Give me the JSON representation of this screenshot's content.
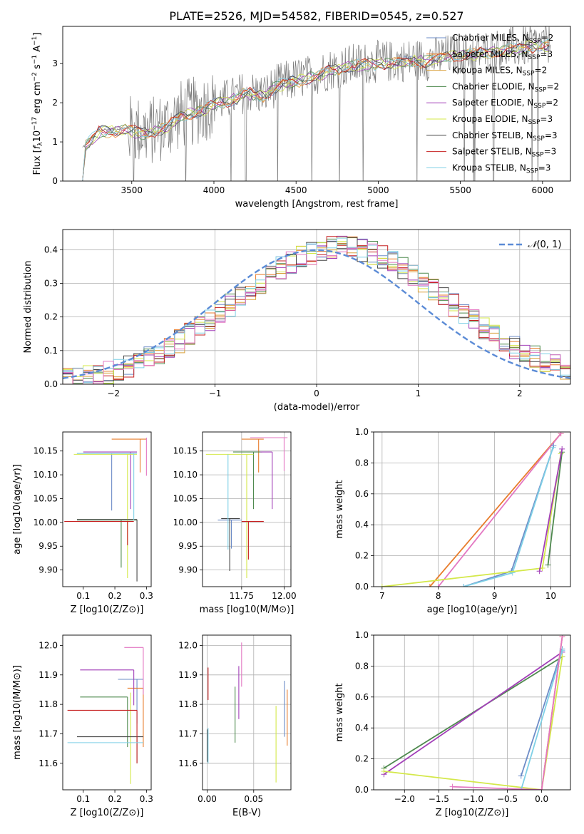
{
  "figure_title": "PLATE=2526, MJD=54582, FIBERID=0545, z=0.527",
  "legend_models": [
    {
      "label": "Chabrier MILES, N$_{SSP}$=2",
      "color": "#6d8cc7"
    },
    {
      "label": "Salpeter MILES, N$_{SSP}$=3",
      "color": "#e87c2b"
    },
    {
      "label": "Kroupa MILES, N$_{SSP}$=2",
      "color": "#d9a03a"
    },
    {
      "label": "Chabrier ELODIE, N$_{SSP}$=2",
      "color": "#4f8a4f"
    },
    {
      "label": "Salpeter ELODIE, N$_{SSP}$=2",
      "color": "#a23fb8"
    },
    {
      "label": "Kroupa ELODIE, N$_{SSP}$=3",
      "color": "#d4e84a"
    },
    {
      "label": "Chabrier STELIB, N$_{SSP}$=3",
      "color": "#444444"
    },
    {
      "label": "Salpeter STELIB, N$_{SSP}$=3",
      "color": "#c62020"
    },
    {
      "label": "Kroupa STELIB, N$_{SSP}$=3",
      "color": "#7fd0e6"
    }
  ],
  "legend_display": [
    "Chabrier MILES, N_SSP=2",
    "Salpeter MILES, N_SSP=3",
    "Kroupa MILES, N_SSP=2",
    "Chabrier ELODIE, N_SSP=2",
    "Salpeter ELODIE, N_SSP=2",
    "Kroupa ELODIE, N_SSP=3",
    "Chabrier STELIB, N_SSP=3",
    "Salpeter STELIB, N_SSP=3",
    "Kroupa STELIB, N_SSP=3"
  ],
  "colors": {
    "data": "#7a7a7a",
    "pink": "#e377c2",
    "gaussian": "#5b8bd6",
    "grid": "#b0b0b0"
  },
  "chart_data": [
    {
      "id": "spectrum",
      "type": "line",
      "title": "PLATE=2526, MJD=54582, FIBERID=0545, z=0.527",
      "xlabel": "wavelength [Angstrom, rest frame]",
      "ylabel": "Flux [f_λ 10^-17 erg cm^-2 s^-1 A^-1]",
      "xlim": [
        3080,
        6170
      ],
      "ylim": [
        0,
        3.95
      ],
      "xticks": [
        3500,
        4000,
        4500,
        5000,
        5500,
        6000
      ],
      "yticks": [
        0,
        1,
        2,
        3
      ],
      "continuum_x": [
        3200,
        3300,
        3450,
        3600,
        3700,
        3800,
        3900,
        4000,
        4100,
        4200,
        4300,
        4400,
        4500,
        4600,
        4700,
        4800,
        4900,
        5000,
        5100,
        5200,
        5300,
        5400,
        5500,
        5600,
        5700,
        5800,
        5900,
        6000,
        6050
      ],
      "continuum_y": [
        0.85,
        1.3,
        1.35,
        1.25,
        1.4,
        1.7,
        1.8,
        2.0,
        2.1,
        2.3,
        2.2,
        2.5,
        2.6,
        2.7,
        2.85,
        2.95,
        3.0,
        3.05,
        3.05,
        3.1,
        3.1,
        3.2,
        3.25,
        3.3,
        3.35,
        3.4,
        3.45,
        3.5,
        3.5
      ],
      "grid": false,
      "legend": "top-right"
    },
    {
      "id": "residuals",
      "type": "histogram",
      "xlabel": "(data-model)/error",
      "ylabel": "Normed distribution",
      "xlim": [
        -2.5,
        2.5
      ],
      "ylim": [
        0,
        0.46
      ],
      "xticks": [
        -2,
        -1,
        0,
        1,
        2
      ],
      "yticks": [
        0.0,
        0.1,
        0.2,
        0.3,
        0.4
      ],
      "bin_width": 0.1,
      "gaussian_label": "N(0,1)",
      "legend": "upper-right",
      "grid": true
    },
    {
      "id": "age_vs_Z",
      "type": "errorbar",
      "xlabel": "Z [log10(Z/Z⊙)]",
      "ylabel": "age  [log10(age/yr)]",
      "xlim": [
        0.035,
        0.315
      ],
      "ylim": [
        9.865,
        10.19
      ],
      "xticks": [
        0.1,
        0.2,
        0.3
      ],
      "yticks": [
        9.9,
        9.95,
        10.0,
        10.05,
        10.1,
        10.15
      ],
      "grid": false,
      "points": [
        {
          "x": 0.19,
          "y": 10.145,
          "xerr": [
            0.11,
            0.07
          ],
          "yerr": [
            0.12,
            0.0
          ],
          "color": "#6d8cc7"
        },
        {
          "x": 0.28,
          "y": 10.175,
          "xerr": [
            0.09,
            0.02
          ],
          "yerr": [
            0.07,
            0.0
          ],
          "color": "#e87c2b"
        },
        {
          "x": 0.22,
          "y": 10.005,
          "xerr": [
            0.14,
            0.05
          ],
          "yerr": [
            0.1,
            0.0
          ],
          "color": "#4f8a4f"
        },
        {
          "x": 0.25,
          "y": 10.148,
          "xerr": [
            0.15,
            0.02
          ],
          "yerr": [
            0.12,
            0.0
          ],
          "color": "#a23fb8"
        },
        {
          "x": 0.24,
          "y": 10.143,
          "xerr": [
            0.17,
            0.03
          ],
          "yerr": [
            0.26,
            0.0
          ],
          "color": "#d4e84a"
        },
        {
          "x": 0.27,
          "y": 10.006,
          "xerr": [
            0.19,
            0.0
          ],
          "yerr": [
            0.13,
            0.0
          ],
          "color": "#444444"
        },
        {
          "x": 0.24,
          "y": 10.002,
          "xerr": [
            0.2,
            0.02
          ],
          "yerr": [
            0.05,
            0.0
          ],
          "color": "#c62020"
        },
        {
          "x": 0.26,
          "y": 10.145,
          "xerr": [
            0.18,
            0.01
          ],
          "yerr": [
            0.14,
            0.0
          ],
          "color": "#7fd0e6"
        },
        {
          "x": 0.3,
          "y": 10.178,
          "xerr": [
            0.0,
            0.0
          ],
          "yerr": [
            0.08,
            0.0
          ],
          "color": "#e377c2"
        }
      ]
    },
    {
      "id": "age_vs_mass",
      "type": "errorbar",
      "xlabel": "mass [log10(M/M⊙)]",
      "ylabel": "",
      "xlim": [
        11.52,
        12.04
      ],
      "ylim": [
        9.865,
        10.19
      ],
      "xticks": [
        11.75,
        12.0
      ],
      "yticks": [
        9.9,
        9.95,
        10.0,
        10.05,
        10.1,
        10.15
      ],
      "grid": true,
      "points": [
        {
          "x": 11.69,
          "y": 10.005,
          "xerr": [
            0.08,
            0.06
          ],
          "yerr": [
            0.06,
            0.0
          ],
          "color": "#6d8cc7"
        },
        {
          "x": 11.85,
          "y": 10.175,
          "xerr": [
            0.1,
            0.03
          ],
          "yerr": [
            0.07,
            0.0
          ],
          "color": "#e87c2b"
        },
        {
          "x": 11.82,
          "y": 10.148,
          "xerr": [
            0.12,
            0.05
          ],
          "yerr": [
            0.12,
            0.0
          ],
          "color": "#4f8a4f"
        },
        {
          "x": 11.93,
          "y": 10.148,
          "xerr": [
            0.07,
            0.0
          ],
          "yerr": [
            0.12,
            0.0
          ],
          "color": "#a23fb8"
        },
        {
          "x": 11.78,
          "y": 10.143,
          "xerr": [
            0.24,
            0.04
          ],
          "yerr": [
            0.26,
            0.0
          ],
          "color": "#d4e84a"
        },
        {
          "x": 11.68,
          "y": 10.008,
          "xerr": [
            0.05,
            0.06
          ],
          "yerr": [
            0.11,
            0.0
          ],
          "color": "#444444"
        },
        {
          "x": 11.79,
          "y": 10.002,
          "xerr": [
            0.04,
            0.09
          ],
          "yerr": [
            0.08,
            0.0
          ],
          "color": "#c62020"
        },
        {
          "x": 11.67,
          "y": 10.143,
          "xerr": [
            0.0,
            0.0
          ],
          "yerr": [
            0.2,
            0.0
          ],
          "color": "#7fd0e6"
        },
        {
          "x": 12.0,
          "y": 10.178,
          "xerr": [
            0.2,
            0.02
          ],
          "yerr": [
            0.07,
            0.0
          ],
          "color": "#e377c2"
        }
      ]
    },
    {
      "id": "mass_weight_vs_age",
      "type": "line",
      "xlabel": "age  [log10(age/yr)]",
      "ylabel": "mass weight",
      "xlim": [
        6.85,
        10.35
      ],
      "ylim": [
        0,
        1.0
      ],
      "xticks": [
        7,
        8,
        9,
        10
      ],
      "yticks": [
        0.0,
        0.2,
        0.4,
        0.6,
        0.8,
        1.0
      ],
      "grid": true,
      "series": [
        {
          "color": "#e87c2b",
          "x": [
            7.85,
            10.18
          ],
          "y": [
            0.0,
            0.99
          ]
        },
        {
          "color": "#e377c2",
          "x": [
            8.0,
            10.18
          ],
          "y": [
            0.0,
            0.99
          ]
        },
        {
          "color": "#6d8cc7",
          "x": [
            8.45,
            9.3,
            10.05
          ],
          "y": [
            0.0,
            0.1,
            0.91
          ]
        },
        {
          "color": "#7fd0e6",
          "x": [
            8.45,
            9.32,
            10.04
          ],
          "y": [
            0.0,
            0.09,
            0.9
          ]
        },
        {
          "color": "#d4e84a",
          "x": [
            7.0,
            9.85,
            10.18
          ],
          "y": [
            0.0,
            0.12,
            0.86
          ]
        },
        {
          "color": "#4f8a4f",
          "x": [
            9.95,
            10.2
          ],
          "y": [
            0.14,
            0.87
          ]
        },
        {
          "color": "#a23fb8",
          "x": [
            9.8,
            10.2
          ],
          "y": [
            0.1,
            0.89
          ]
        }
      ]
    },
    {
      "id": "mass_vs_Z",
      "type": "errorbar",
      "xlabel": "Z [log10(Z/Z⊙)]",
      "ylabel": "mass [log10(M/M⊙)]",
      "xlim": [
        0.035,
        0.315
      ],
      "ylim": [
        11.51,
        12.035
      ],
      "xticks": [
        0.1,
        0.2,
        0.3
      ],
      "yticks": [
        11.6,
        11.7,
        11.8,
        11.9,
        12.0
      ],
      "grid": false,
      "points": [
        {
          "x": 0.27,
          "y": 11.885,
          "xerr": [
            0.06,
            0.02
          ],
          "yerr": [
            0.15,
            0.0
          ],
          "color": "#6d8cc7"
        },
        {
          "x": 0.29,
          "y": 11.855,
          "xerr": [
            0.05,
            0.0
          ],
          "yerr": [
            0.2,
            0.0
          ],
          "color": "#e87c2b"
        },
        {
          "x": 0.24,
          "y": 11.825,
          "xerr": [
            0.15,
            0.0
          ],
          "yerr": [
            0.17,
            0.0
          ],
          "color": "#4f8a4f"
        },
        {
          "x": 0.26,
          "y": 11.917,
          "xerr": [
            0.17,
            0.0
          ],
          "yerr": [
            0.12,
            0.0
          ],
          "color": "#a23fb8"
        },
        {
          "x": 0.25,
          "y": 11.84,
          "xerr": [
            0.0,
            0.0
          ],
          "yerr": [
            0.31,
            0.0
          ],
          "color": "#d4e84a"
        },
        {
          "x": 0.27,
          "y": 11.69,
          "xerr": [
            0.19,
            0.02
          ],
          "yerr": [
            0.09,
            0.0
          ],
          "color": "#444444"
        },
        {
          "x": 0.27,
          "y": 11.78,
          "xerr": [
            0.22,
            0.0
          ],
          "yerr": [
            0.18,
            0.0
          ],
          "color": "#c62020"
        },
        {
          "x": 0.25,
          "y": 11.67,
          "xerr": [
            0.2,
            0.04
          ],
          "yerr": [
            0.0,
            0.0
          ],
          "color": "#7fd0e6"
        },
        {
          "x": 0.29,
          "y": 11.993,
          "xerr": [
            0.06,
            0.0
          ],
          "yerr": [
            0.16,
            0.0
          ],
          "color": "#e377c2"
        }
      ]
    },
    {
      "id": "mass_vs_EBV",
      "type": "errorbar",
      "xlabel": "E(B-V)",
      "ylabel": "",
      "xlim": [
        -0.005,
        0.09
      ],
      "ylim": [
        11.51,
        12.035
      ],
      "xticks": [
        0.0,
        0.05
      ],
      "yticks": [
        11.6,
        11.7,
        11.8,
        11.9,
        12.0
      ],
      "grid": true,
      "points": [
        {
          "x": 0.083,
          "y": 11.69,
          "xerr": [
            0.0,
            0.0
          ],
          "yerr": [
            0.0,
            0.19
          ],
          "color": "#6d8cc7"
        },
        {
          "x": 0.086,
          "y": 11.66,
          "xerr": [
            0.0,
            0.0
          ],
          "yerr": [
            0.0,
            0.19
          ],
          "color": "#e87c2b"
        },
        {
          "x": 0.03,
          "y": 11.67,
          "xerr": [
            0.0,
            0.0
          ],
          "yerr": [
            0.0,
            0.19
          ],
          "color": "#4f8a4f"
        },
        {
          "x": 0.034,
          "y": 11.75,
          "xerr": [
            0.0,
            0.0
          ],
          "yerr": [
            0.0,
            0.18
          ],
          "color": "#a23fb8"
        },
        {
          "x": 0.074,
          "y": 11.535,
          "xerr": [
            0.0,
            0.0
          ],
          "yerr": [
            0.0,
            0.26
          ],
          "color": "#d4e84a"
        },
        {
          "x": 0.0,
          "y": 11.605,
          "xerr": [
            0.0,
            0.0
          ],
          "yerr": [
            0.0,
            0.11
          ],
          "color": "#444444"
        },
        {
          "x": 0.001,
          "y": 11.815,
          "xerr": [
            0.0,
            0.0
          ],
          "yerr": [
            0.0,
            0.11
          ],
          "color": "#c62020"
        },
        {
          "x": 0.001,
          "y": 11.6,
          "xerr": [
            0.0,
            0.0
          ],
          "yerr": [
            0.0,
            0.12
          ],
          "color": "#7fd0e6"
        },
        {
          "x": 0.037,
          "y": 11.86,
          "xerr": [
            0.0,
            0.0
          ],
          "yerr": [
            0.0,
            0.15
          ],
          "color": "#e377c2"
        }
      ]
    },
    {
      "id": "mass_weight_vs_Z",
      "type": "line",
      "xlabel": "Z [log10(Z/Z⊙)]",
      "ylabel": "mass weight",
      "xlim": [
        -2.45,
        0.42
      ],
      "ylim": [
        0,
        1.0
      ],
      "xticks": [
        -2.0,
        -1.5,
        -1.0,
        -0.5,
        0.0
      ],
      "yticks": [
        0.0,
        0.2,
        0.4,
        0.6,
        0.8,
        1.0
      ],
      "grid": true,
      "series": [
        {
          "color": "#4f8a4f",
          "x": [
            -2.3,
            0.3
          ],
          "y": [
            0.14,
            0.86
          ]
        },
        {
          "color": "#a23fb8",
          "x": [
            -2.3,
            0.3
          ],
          "y": [
            0.1,
            0.89
          ]
        },
        {
          "color": "#d4e84a",
          "x": [
            -2.3,
            0.0,
            0.3
          ],
          "y": [
            0.12,
            0.0,
            0.86
          ]
        },
        {
          "color": "#6d8cc7",
          "x": [
            -0.3,
            0.3
          ],
          "y": [
            0.09,
            0.91
          ]
        },
        {
          "color": "#7fd0e6",
          "x": [
            -0.3,
            0.3
          ],
          "y": [
            0.0,
            0.9
          ]
        },
        {
          "color": "#e87c2b",
          "x": [
            0.0,
            0.3
          ],
          "y": [
            0.0,
            0.99
          ]
        },
        {
          "color": "#e377c2",
          "x": [
            -1.3,
            0.0,
            0.3
          ],
          "y": [
            0.02,
            0.0,
            0.99
          ]
        }
      ]
    }
  ]
}
